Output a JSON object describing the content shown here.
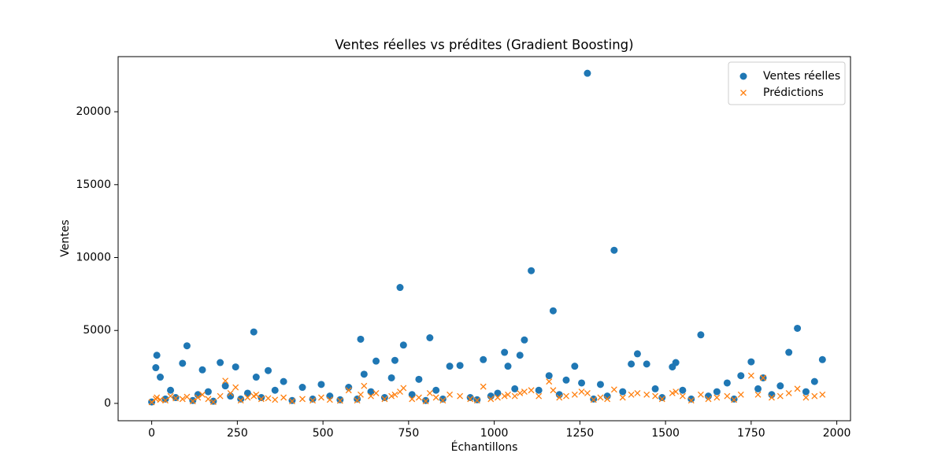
{
  "chart_data": {
    "type": "scatter",
    "title": "Ventes réelles vs prédites (Gradient Boosting)",
    "xlabel": "Échantillons",
    "ylabel": "Ventes",
    "x": [
      0,
      12,
      15,
      25,
      40,
      55,
      70,
      90,
      103,
      120,
      135,
      148,
      165,
      180,
      200,
      215,
      230,
      245,
      260,
      280,
      298,
      305,
      320,
      340,
      360,
      385,
      410,
      440,
      470,
      495,
      520,
      550,
      575,
      600,
      610,
      620,
      640,
      655,
      680,
      700,
      710,
      725,
      735,
      760,
      780,
      800,
      812,
      830,
      850,
      870,
      900,
      930,
      950,
      968,
      990,
      1010,
      1030,
      1040,
      1060,
      1075,
      1088,
      1108,
      1130,
      1160,
      1172,
      1190,
      1210,
      1235,
      1255,
      1272,
      1290,
      1310,
      1330,
      1350,
      1375,
      1400,
      1418,
      1445,
      1470,
      1490,
      1520,
      1530,
      1550,
      1575,
      1603,
      1625,
      1650,
      1680,
      1700,
      1720,
      1750,
      1770,
      1785,
      1810,
      1835,
      1860,
      1885,
      1910,
      1935,
      1958
    ],
    "series": [
      {
        "name": "Ventes réelles",
        "color": "#1f77b4",
        "marker": "o",
        "values": [
          100,
          2450,
          3300,
          1800,
          300,
          900,
          400,
          2750,
          3950,
          200,
          600,
          2300,
          800,
          150,
          2800,
          1200,
          500,
          2500,
          300,
          700,
          4900,
          1800,
          400,
          2250,
          900,
          1500,
          200,
          1100,
          300,
          1300,
          500,
          250,
          1100,
          300,
          4400,
          2000,
          800,
          2900,
          400,
          1750,
          2950,
          7950,
          4000,
          600,
          1650,
          200,
          4500,
          900,
          300,
          2550,
          2600,
          400,
          250,
          3000,
          500,
          700,
          3500,
          2550,
          1000,
          3300,
          4350,
          9100,
          900,
          1900,
          6350,
          600,
          1600,
          2550,
          1400,
          22640,
          300,
          1300,
          500,
          10500,
          800,
          2700,
          3400,
          2700,
          1000,
          400,
          2500,
          2800,
          900,
          300,
          4700,
          500,
          800,
          1400,
          300,
          1900,
          2850,
          1000,
          1750,
          600,
          1200,
          3500,
          5150,
          800,
          1500,
          3000
        ]
      },
      {
        "name": "Prédictions",
        "color": "#ff7f0e",
        "marker": "x",
        "values": [
          80,
          300,
          400,
          250,
          200,
          500,
          350,
          300,
          450,
          150,
          400,
          600,
          300,
          100,
          500,
          1550,
          700,
          1100,
          200,
          400,
          500,
          600,
          300,
          350,
          250,
          400,
          150,
          300,
          200,
          400,
          250,
          180,
          900,
          200,
          600,
          1200,
          500,
          700,
          300,
          500,
          600,
          800,
          1050,
          300,
          400,
          150,
          700,
          400,
          200,
          600,
          500,
          300,
          200,
          1150,
          300,
          400,
          500,
          600,
          500,
          700,
          800,
          900,
          500,
          1500,
          900,
          400,
          500,
          600,
          800,
          700,
          250,
          400,
          300,
          950,
          400,
          600,
          700,
          600,
          500,
          300,
          700,
          800,
          500,
          200,
          600,
          300,
          400,
          500,
          250,
          600,
          1900,
          600,
          1750,
          400,
          500,
          700,
          1000,
          400,
          500,
          600
        ]
      }
    ],
    "xlim": [
      -98,
      2040
    ],
    "xticks": [
      0,
      250,
      500,
      750,
      1000,
      1250,
      1500,
      1750,
      2000
    ],
    "ylim": [
      -1190,
      23780
    ],
    "yticks": [
      0,
      5000,
      10000,
      15000,
      20000
    ],
    "legend": "upper right"
  }
}
